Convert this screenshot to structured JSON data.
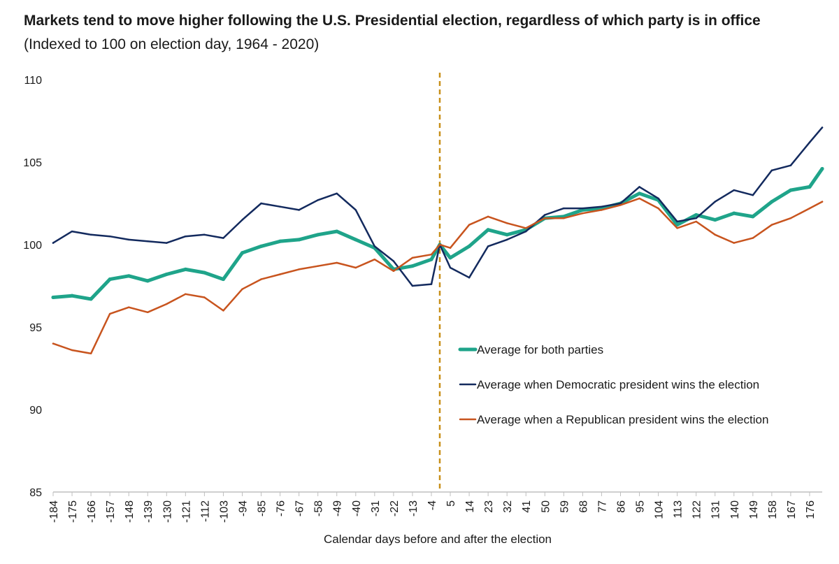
{
  "title": "Markets tend to move higher following the U.S. Presidential election, regardless of which party is in office",
  "subtitle": "(Indexed to 100 on election day, 1964 - 2020)",
  "chart_data": {
    "type": "line",
    "xlabel": "Calendar days before and after the election",
    "ylabel": "",
    "xlim": [
      -184,
      182
    ],
    "ylim": [
      85,
      110
    ],
    "y_ticks": [
      85,
      90,
      95,
      100,
      105,
      110
    ],
    "x_ticks": [
      -184,
      -175,
      -166,
      -157,
      -148,
      -139,
      -130,
      -121,
      -112,
      -103,
      -94,
      -85,
      -76,
      -67,
      -58,
      -49,
      -40,
      -31,
      -22,
      -13,
      -4,
      5,
      14,
      23,
      32,
      41,
      50,
      59,
      68,
      77,
      86,
      95,
      104,
      113,
      122,
      131,
      140,
      149,
      158,
      167,
      176
    ],
    "election_day_marker": {
      "x": 0,
      "style": "dashed",
      "color": "#c8901a"
    },
    "grid": false,
    "legend_position": "lower-right",
    "x": [
      -184,
      -175,
      -166,
      -157,
      -148,
      -139,
      -130,
      -121,
      -112,
      -103,
      -94,
      -85,
      -76,
      -67,
      -58,
      -49,
      -40,
      -31,
      -22,
      -13,
      -4,
      0,
      5,
      14,
      23,
      32,
      41,
      50,
      59,
      68,
      77,
      86,
      95,
      104,
      113,
      122,
      131,
      140,
      149,
      158,
      167,
      176,
      182
    ],
    "series": [
      {
        "name": "Average for both parties",
        "color": "#1fa48a",
        "width": 5,
        "values": [
          96.8,
          96.9,
          96.7,
          97.9,
          98.1,
          97.8,
          98.2,
          98.5,
          98.3,
          97.9,
          99.5,
          99.9,
          100.2,
          100.3,
          100.6,
          100.8,
          100.3,
          99.8,
          98.5,
          98.7,
          99.1,
          100.0,
          99.2,
          99.9,
          100.9,
          100.6,
          100.9,
          101.6,
          101.7,
          102.1,
          102.2,
          102.5,
          103.1,
          102.7,
          101.2,
          101.8,
          101.5,
          101.9,
          101.7,
          102.6,
          103.3,
          103.5,
          104.6
        ]
      },
      {
        "name": "Average when Democratic president wins the election",
        "color": "#132a5e",
        "width": 2.5,
        "values": [
          100.1,
          100.8,
          100.6,
          100.5,
          100.3,
          100.2,
          100.1,
          100.5,
          100.6,
          100.4,
          101.5,
          102.5,
          102.3,
          102.1,
          102.7,
          103.1,
          102.1,
          99.9,
          99.0,
          97.5,
          97.6,
          100.0,
          98.6,
          98.0,
          99.9,
          100.3,
          100.8,
          101.8,
          102.2,
          102.2,
          102.3,
          102.5,
          103.5,
          102.8,
          101.4,
          101.6,
          102.6,
          103.3,
          103.0,
          104.5,
          104.8,
          106.2,
          107.1
        ]
      },
      {
        "name": "Average when a Republican president wins the election",
        "color": "#c8541e",
        "width": 2.5,
        "values": [
          94.0,
          93.6,
          93.4,
          95.8,
          96.2,
          95.9,
          96.4,
          97.0,
          96.8,
          96.0,
          97.3,
          97.9,
          98.2,
          98.5,
          98.7,
          98.9,
          98.6,
          99.1,
          98.4,
          99.2,
          99.4,
          100.0,
          99.8,
          101.2,
          101.7,
          101.3,
          101.0,
          101.6,
          101.6,
          101.9,
          102.1,
          102.4,
          102.8,
          102.2,
          101.0,
          101.4,
          100.6,
          100.1,
          100.4,
          101.2,
          101.6,
          102.2,
          102.6
        ]
      }
    ]
  }
}
